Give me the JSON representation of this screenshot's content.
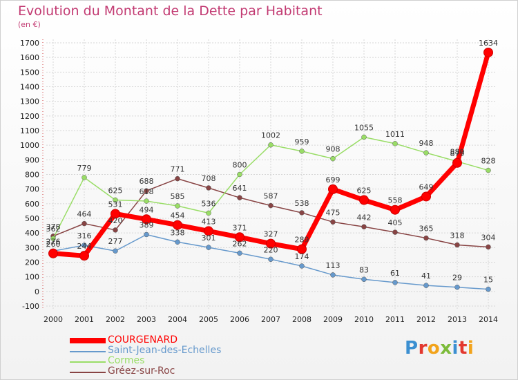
{
  "header": {
    "title": "Evolution du Montant de la Dette par Habitant",
    "unit": "(en €)"
  },
  "logo": {
    "text": "Proxiti",
    "colors": [
      "#3b8fd1",
      "#e3382f",
      "#f2a31b",
      "#7cbb3a",
      "#3b8fd1",
      "#e3382f",
      "#f2a31b"
    ]
  },
  "chart_data": {
    "type": "line",
    "title": "Evolution du Montant de la Dette par Habitant",
    "subtitle": "(en €)",
    "xlabel": "",
    "ylabel": "",
    "ylim": [
      -100,
      1700
    ],
    "yticks": [
      -100,
      0,
      100,
      200,
      300,
      400,
      500,
      600,
      700,
      800,
      900,
      1000,
      1100,
      1200,
      1300,
      1400,
      1500,
      1600,
      1700
    ],
    "x": [
      "2000",
      "2001",
      "2002",
      "2003",
      "2004",
      "2005",
      "2006",
      "2007",
      "2008",
      "2009",
      "2010",
      "2011",
      "2012",
      "2013",
      "2014"
    ],
    "grid": true,
    "legend_position": "bottom-left",
    "series": [
      {
        "name": "COURGENARD",
        "color": "#ff0000",
        "values": [
          260,
          244,
          531,
          494,
          454,
          413,
          371,
          327,
          289,
          699,
          625,
          558,
          649,
          879,
          1634
        ],
        "labels": [
          "260",
          "244",
          "531",
          "494",
          "454",
          "413",
          "371",
          "327",
          "289",
          "699",
          "625",
          "558",
          "649",
          "879",
          "1634"
        ]
      },
      {
        "name": "Saint-Jean-des-Echelles",
        "color": "#6699cc",
        "values": [
          276,
          316,
          277,
          389,
          338,
          301,
          262,
          220,
          174,
          113,
          83,
          61,
          41,
          29,
          15
        ],
        "labels": [
          "276",
          "316",
          "277",
          "389",
          "338",
          "301",
          "262",
          "220",
          "174",
          "113",
          "83",
          "61",
          "41",
          "29",
          "15"
        ]
      },
      {
        "name": "Cormes",
        "color": "#99dd66",
        "values": [
          362,
          779,
          625,
          618,
          585,
          536,
          800,
          1002,
          959,
          908,
          1055,
          1011,
          948,
          889,
          828
        ],
        "labels": [
          "362",
          "779",
          "625",
          "618",
          "585",
          "536",
          "800",
          "1002",
          "959",
          "908",
          "1055",
          "1011",
          "948",
          "889",
          "828"
        ]
      },
      {
        "name": "Gréez-sur-Roc",
        "color": "#884444",
        "values": [
          378,
          464,
          420,
          688,
          771,
          708,
          641,
          587,
          538,
          475,
          442,
          405,
          365,
          318,
          304
        ],
        "labels": [
          "378",
          "464",
          "420",
          "688",
          "771",
          "708",
          "641",
          "587",
          "538",
          "475",
          "442",
          "405",
          "365",
          "318",
          "304"
        ]
      }
    ]
  }
}
